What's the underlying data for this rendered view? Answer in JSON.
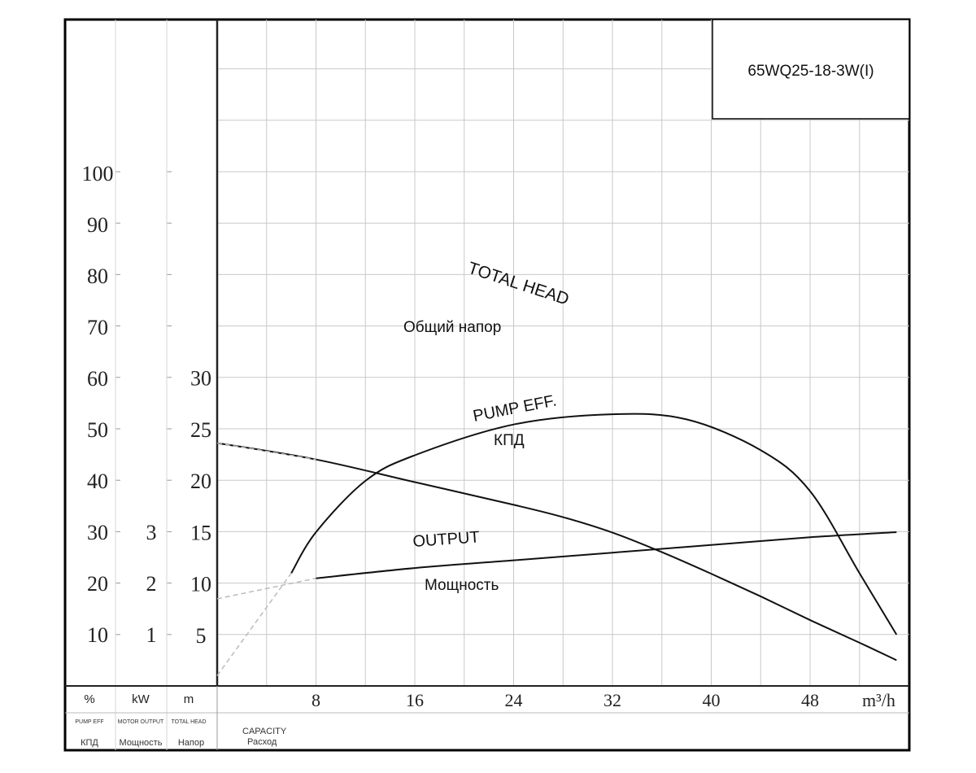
{
  "model_label": "65WQ25-18-3W(I)",
  "axis_units": {
    "eff": "%",
    "eff_en": "PUMP EFF",
    "eff_ru": "КПД",
    "power": "kW",
    "power_en": "MOTOR OUTPUT",
    "power_ru": "Мощность",
    "head": "m",
    "head_en": "TOTAL HEAD",
    "head_ru": "Напор",
    "x_en": "CAPACITY",
    "x_ru": "Расход",
    "x_unit": "m³/h"
  },
  "curve_labels": {
    "head_en": "TOTAL HEAD",
    "head_ru": "Общий напор",
    "eff_en": "PUMP EFF.",
    "eff_ru": "КПД",
    "power_en": "OUTPUT",
    "power_ru": "Мощность"
  },
  "chart_data": {
    "type": "line",
    "x_ticks": [
      "8",
      "16",
      "24",
      "32",
      "40",
      "48"
    ],
    "xlim": [
      0,
      56
    ],
    "y_axes": {
      "efficiency_percent": {
        "ticks": [
          "10",
          "20",
          "30",
          "40",
          "50",
          "60",
          "70",
          "80",
          "90",
          "100"
        ],
        "ylim": [
          0,
          120
        ]
      },
      "power_kw": {
        "ticks": [
          "1",
          "2",
          "3"
        ],
        "ylim": [
          0,
          12
        ]
      },
      "head_m": {
        "ticks": [
          "5",
          "10",
          "15",
          "20",
          "25",
          "30"
        ],
        "ylim": [
          0,
          36
        ]
      }
    },
    "grid": true,
    "series": [
      {
        "name": "TOTAL HEAD",
        "axis": "head_m",
        "x": [
          0,
          8,
          16,
          24,
          28,
          32,
          36,
          40,
          44,
          48,
          52,
          55
        ],
        "y": [
          23.6,
          22.0,
          19.8,
          17.6,
          16.4,
          14.9,
          13.0,
          10.9,
          8.7,
          6.4,
          4.2,
          2.5
        ]
      },
      {
        "name": "PUMP EFF.",
        "axis": "efficiency_percent",
        "x": [
          6,
          8,
          12,
          16,
          24,
          32,
          38,
          44,
          48,
          52,
          55
        ],
        "y": [
          22,
          30,
          40,
          45,
          51,
          53,
          52,
          46,
          38,
          22,
          10
        ]
      },
      {
        "name": "OUTPUT",
        "axis": "power_kw",
        "x": [
          8,
          16,
          24,
          32,
          40,
          48,
          55
        ],
        "y": [
          2.1,
          2.3,
          2.45,
          2.6,
          2.75,
          2.9,
          3.0
        ]
      }
    ]
  }
}
